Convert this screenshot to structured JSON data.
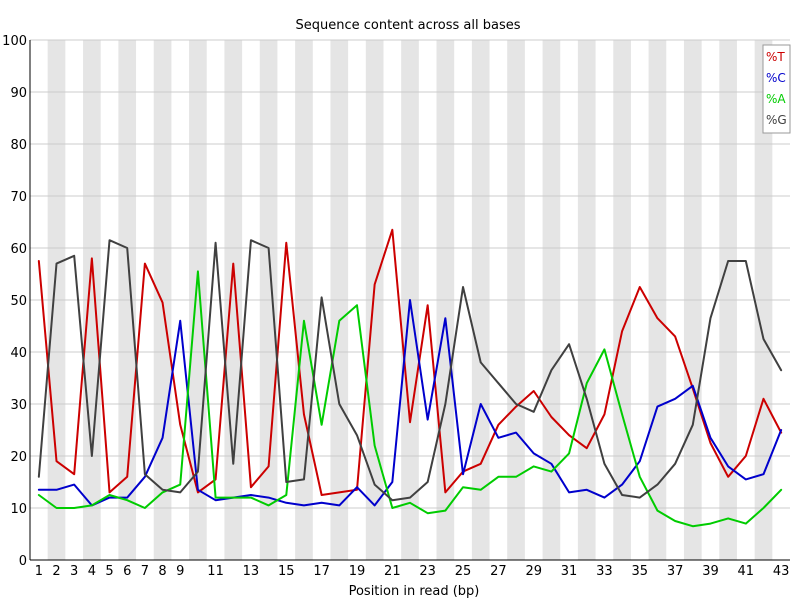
{
  "chart_data": {
    "type": "line",
    "title": "Sequence content across all bases",
    "xlabel": "Position in read (bp)",
    "ylabel": "",
    "ylim": [
      0,
      100
    ],
    "yticks": [
      0,
      10,
      20,
      30,
      40,
      50,
      60,
      70,
      80,
      90,
      100
    ],
    "x": [
      1,
      2,
      3,
      4,
      5,
      6,
      7,
      8,
      9,
      10,
      11,
      12,
      13,
      14,
      15,
      16,
      17,
      18,
      19,
      20,
      21,
      22,
      23,
      24,
      25,
      26,
      27,
      28,
      29,
      30,
      31,
      32,
      33,
      34,
      35,
      36,
      37,
      38,
      39,
      40,
      41,
      42,
      43
    ],
    "xtick_labels": [
      "1",
      "2",
      "3",
      "4",
      "5",
      "6",
      "7",
      "8",
      "9",
      "11",
      "13",
      "15",
      "17",
      "19",
      "21",
      "23",
      "25",
      "27",
      "29",
      "31",
      "33",
      "35",
      "37",
      "39",
      "41",
      "43"
    ],
    "grid": "alternating vertical bands",
    "legend_position": "top-right",
    "series": [
      {
        "name": "%T",
        "color": "#cc0000",
        "values": [
          57.5,
          19,
          16.5,
          58,
          13,
          16,
          57,
          49.5,
          26,
          13,
          15.5,
          57,
          14,
          18,
          61,
          28,
          12.5,
          13,
          13.5,
          53,
          63.5,
          26.5,
          49,
          13,
          17,
          18.5,
          26,
          29.5,
          32.5,
          27.5,
          24,
          21.5,
          28,
          44,
          52.5,
          46.5,
          43,
          33,
          22.5,
          16,
          20,
          31,
          24.5
        ]
      },
      {
        "name": "%C",
        "color": "#0000cc",
        "values": [
          13.5,
          13.5,
          14.5,
          10.5,
          12,
          12,
          16,
          23.5,
          46,
          13.5,
          11.5,
          12,
          12.5,
          12,
          11,
          10.5,
          11,
          10.5,
          14,
          10.5,
          15,
          50,
          27,
          46.5,
          16.5,
          30,
          23.5,
          24.5,
          20.5,
          18.5,
          13,
          13.5,
          12,
          14.5,
          19,
          29.5,
          31,
          33.5,
          23.5,
          18,
          15.5,
          16.5,
          25
        ]
      },
      {
        "name": "%A",
        "color": "#00cc00",
        "values": [
          12.5,
          10,
          10,
          10.5,
          12.5,
          11.5,
          10,
          13,
          14.5,
          55.5,
          12,
          12,
          12,
          10.5,
          12.5,
          46,
          26,
          46,
          49,
          22,
          10,
          11,
          9,
          9.5,
          14,
          13.5,
          16,
          16,
          18,
          17,
          20.5,
          34,
          40.5,
          28,
          16,
          9.5,
          7.5,
          6.5,
          7,
          8,
          7,
          10,
          13.5
        ]
      },
      {
        "name": "%G",
        "color": "#404040",
        "values": [
          16,
          57,
          58.5,
          20,
          61.5,
          60,
          16.5,
          13.5,
          13,
          17,
          61,
          18.5,
          61.5,
          60,
          15,
          15.5,
          50.5,
          30,
          24,
          14.5,
          11.5,
          12,
          15,
          30,
          52.5,
          38,
          34,
          30,
          28.5,
          36.5,
          41.5,
          31,
          18.5,
          12.5,
          12,
          14.5,
          18.5,
          26,
          46.5,
          57.5,
          57.5,
          42.5,
          36.5
        ]
      }
    ]
  }
}
